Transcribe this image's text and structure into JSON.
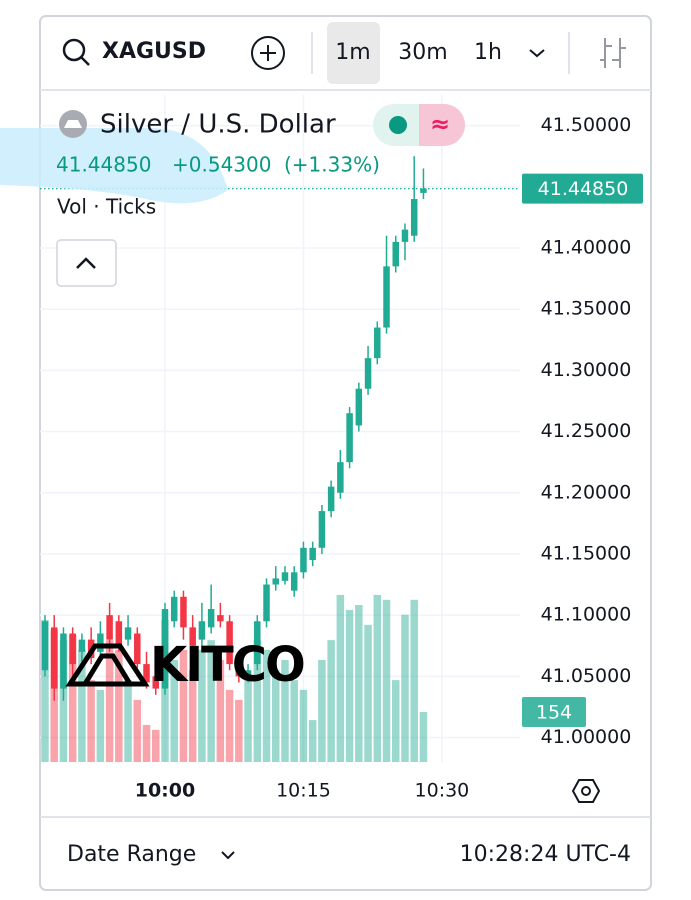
{
  "toolbar": {
    "symbol": "XAGUSD",
    "intervals": [
      "1m",
      "30m",
      "1h"
    ]
  },
  "chart_data": {
    "type": "candlestick",
    "title": "Silver / U.S. Dollar",
    "indicator": "Vol · Ticks",
    "watermark": "KITCO",
    "last_price": {
      "value": 41.4485,
      "label": "41.44850"
    },
    "change": {
      "value": 0.543,
      "label": "+0.54300"
    },
    "change_percent": {
      "value": 1.33,
      "label": "(+1.33%)"
    },
    "up_color": "#22ab94",
    "down_color": "#f23645",
    "open": [
      41.055,
      41.09,
      41.04,
      41.085,
      41.07,
      41.08,
      41.07,
      41.1,
      41.095,
      41.08,
      41.085,
      41.06,
      41.05,
      41.04,
      41.095,
      41.115,
      41.09,
      41.08,
      41.09,
      41.1,
      41.095,
      41.06,
      41.05,
      41.06,
      41.095,
      41.125,
      41.128,
      41.12,
      41.135,
      41.145,
      41.155,
      41.185,
      41.2,
      41.225,
      41.255,
      41.285,
      41.31,
      41.335,
      41.385,
      41.405,
      41.41,
      41.445
    ],
    "high": [
      41.1,
      41.1,
      41.09,
      41.09,
      41.085,
      41.09,
      41.095,
      41.11,
      41.1,
      41.1,
      41.09,
      41.07,
      41.06,
      41.11,
      41.12,
      41.12,
      41.1,
      41.11,
      41.125,
      41.11,
      41.1,
      41.07,
      41.06,
      41.1,
      41.13,
      41.14,
      41.14,
      41.14,
      41.16,
      41.16,
      41.19,
      41.21,
      41.235,
      41.27,
      41.29,
      41.32,
      41.34,
      41.41,
      41.41,
      41.42,
      41.475,
      41.465
    ],
    "low": [
      41.05,
      41.03,
      41.03,
      41.05,
      41.06,
      41.06,
      41.065,
      41.07,
      41.07,
      41.075,
      41.05,
      41.04,
      41.035,
      41.035,
      41.09,
      41.08,
      41.07,
      41.075,
      41.085,
      41.09,
      41.055,
      41.045,
      41.045,
      41.055,
      41.09,
      41.12,
      41.125,
      41.115,
      41.13,
      41.14,
      41.15,
      41.18,
      41.195,
      41.22,
      41.25,
      41.28,
      41.305,
      41.33,
      41.38,
      41.39,
      41.405,
      41.44
    ],
    "close": [
      41.095,
      41.04,
      41.085,
      41.06,
      41.08,
      41.065,
      41.085,
      41.08,
      41.075,
      41.09,
      41.06,
      41.045,
      41.04,
      41.105,
      41.115,
      41.09,
      41.075,
      41.095,
      41.105,
      41.095,
      41.06,
      41.05,
      41.055,
      41.095,
      41.125,
      41.13,
      41.135,
      41.135,
      41.155,
      41.155,
      41.185,
      41.205,
      41.225,
      41.265,
      41.285,
      41.31,
      41.335,
      41.385,
      41.405,
      41.415,
      41.44,
      41.4485
    ],
    "volume": [
      437,
      407,
      375,
      391,
      345,
      252,
      222,
      375,
      345,
      252,
      191,
      114,
      99,
      437,
      314,
      345,
      283,
      345,
      375,
      314,
      222,
      191,
      252,
      375,
      345,
      283,
      314,
      252,
      222,
      129,
      314,
      375,
      514,
      468,
      483,
      422,
      514,
      499,
      252,
      453,
      499,
      154
    ],
    "xlim": [
      -0.54,
      51.46
    ],
    "xticks": [
      {
        "value": 13,
        "label": "10:00"
      },
      {
        "value": 28,
        "label": "10:15"
      },
      {
        "value": 43,
        "label": "10:30"
      }
    ],
    "ylim": [
      40.98,
      41.525
    ],
    "yticks": [
      {
        "value": 41.0,
        "label": "41.00000"
      },
      {
        "value": 41.05,
        "label": "41.05000"
      },
      {
        "value": 41.1,
        "label": "41.10000"
      },
      {
        "value": 41.15,
        "label": "41.15000"
      },
      {
        "value": 41.2,
        "label": "41.20000"
      },
      {
        "value": 41.25,
        "label": "41.25000"
      },
      {
        "value": 41.3,
        "label": "41.30000"
      },
      {
        "value": 41.35,
        "label": "41.35000"
      },
      {
        "value": 41.4,
        "label": "41.40000"
      },
      {
        "value": 41.45,
        "label": "41.45000"
      },
      {
        "value": 41.5,
        "label": "41.50000"
      }
    ],
    "y2lim": [
      0,
      600
    ],
    "grid": true
  },
  "footer": {
    "date_range": "Date Range",
    "time": "10:28:24 UTC-4"
  }
}
